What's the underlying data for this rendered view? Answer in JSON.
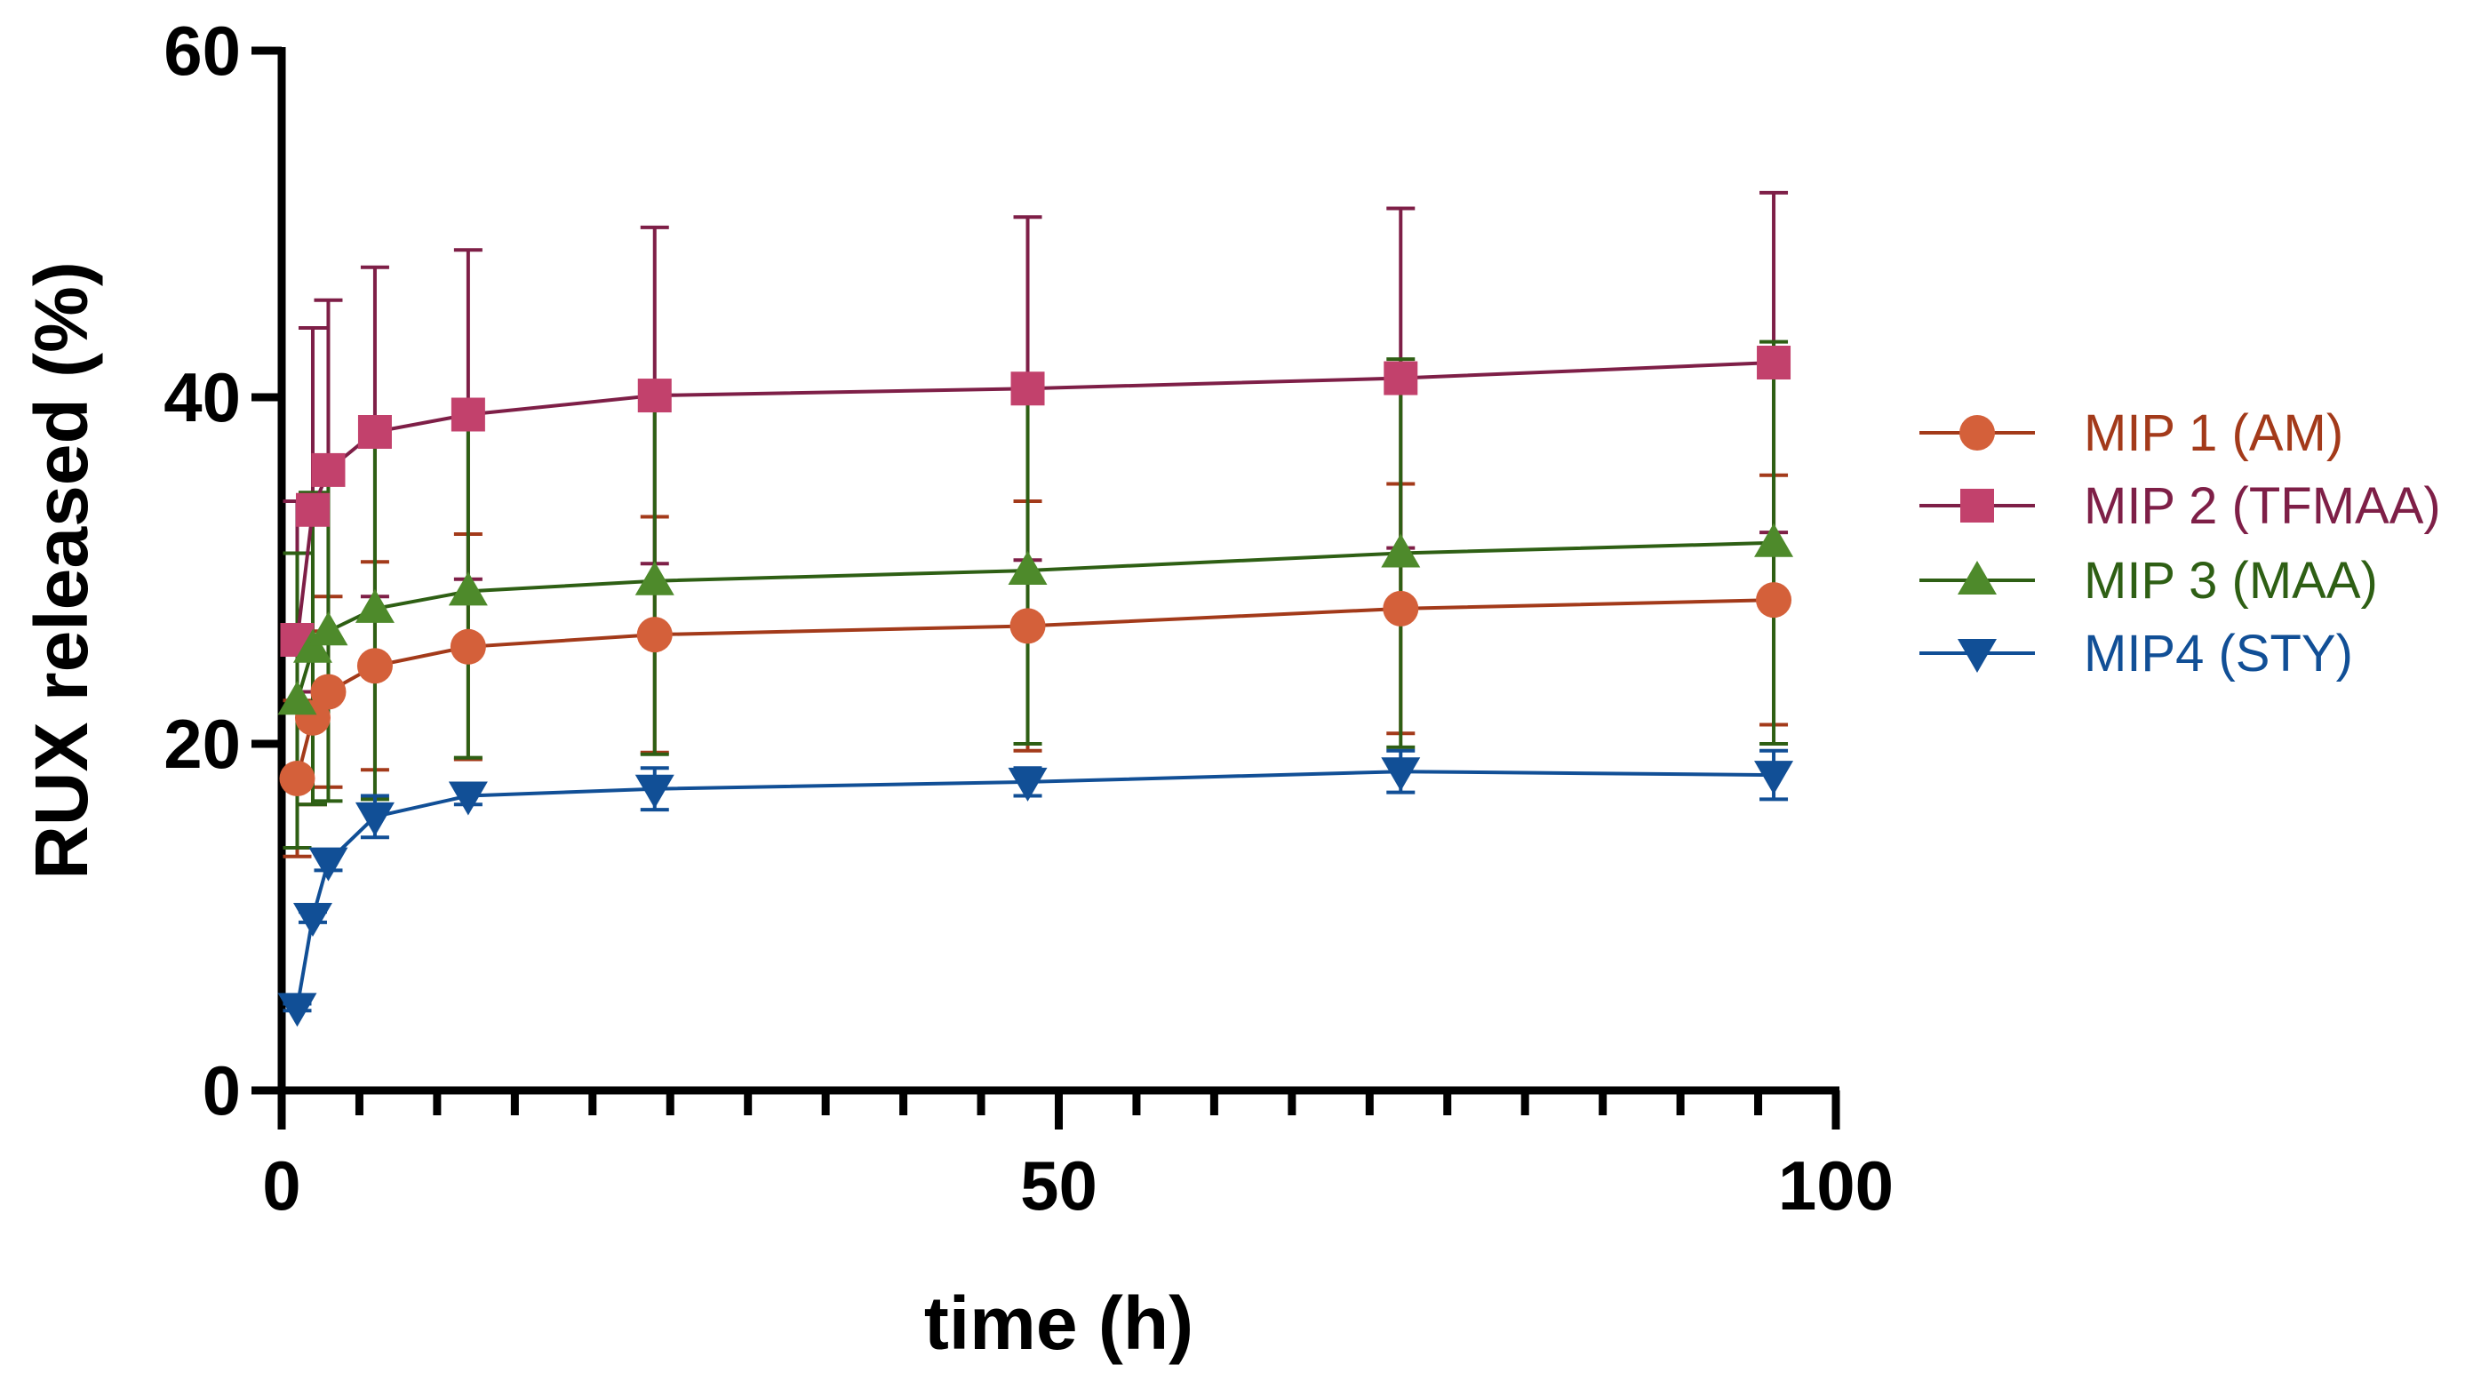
{
  "chart_data": {
    "type": "line",
    "title": "",
    "xlabel": "time (h)",
    "ylabel": "RUX released (%)",
    "xlim": [
      0,
      100
    ],
    "ylim": [
      0,
      60
    ],
    "xticks": [
      0,
      50,
      100
    ],
    "yticks": [
      0,
      20,
      40,
      60
    ],
    "x_minor_step": 5,
    "legend_position": "right",
    "x": [
      1,
      2,
      3,
      6,
      12,
      24,
      48,
      72,
      96
    ],
    "series": [
      {
        "name": "MIP 1 (AM)",
        "color": "#D4603A",
        "line_color": "#A33A1A",
        "text_color": "#A33A1A",
        "marker": "circle",
        "values": [
          18,
          21.5,
          23,
          24.5,
          25.6,
          26.3,
          26.8,
          27.8,
          28.3
        ],
        "errors": [
          4.5,
          5,
          5.5,
          6,
          6.5,
          6.8,
          7.2,
          7.2,
          7.2
        ]
      },
      {
        "name": "MIP 2 (TFMAA)",
        "color": "#C2416C",
        "line_color": "#7E1F47",
        "text_color": "#7E1F47",
        "marker": "square",
        "values": [
          26,
          33.5,
          35.8,
          38,
          39,
          40.1,
          40.5,
          41.1,
          42
        ],
        "errors": [
          8,
          10.5,
          9.8,
          9.5,
          9.5,
          9.7,
          9.9,
          9.8,
          9.8
        ]
      },
      {
        "name": "MIP 3 (MAA)",
        "color": "#4E8A2B",
        "line_color": "#2E5F14",
        "text_color": "#2E5F14",
        "marker": "triangle-up",
        "values": [
          22.5,
          25.5,
          26.5,
          27.8,
          28.8,
          29.4,
          30,
          31,
          31.6
        ],
        "errors": [
          8.5,
          9,
          9.8,
          11,
          9.6,
          10,
          10,
          11.2,
          11.6
        ]
      },
      {
        "name": "MIP4 (STY)",
        "color": "#114F96",
        "line_color": "#114F96",
        "text_color": "#114F96",
        "marker": "triangle-down",
        "values": [
          4.8,
          10,
          13.2,
          15.8,
          17,
          17.4,
          17.8,
          18.4,
          18.2
        ],
        "errors": [
          0.2,
          0.3,
          0.5,
          1.2,
          0.5,
          1.2,
          0.8,
          1.2,
          1.4
        ]
      }
    ]
  }
}
